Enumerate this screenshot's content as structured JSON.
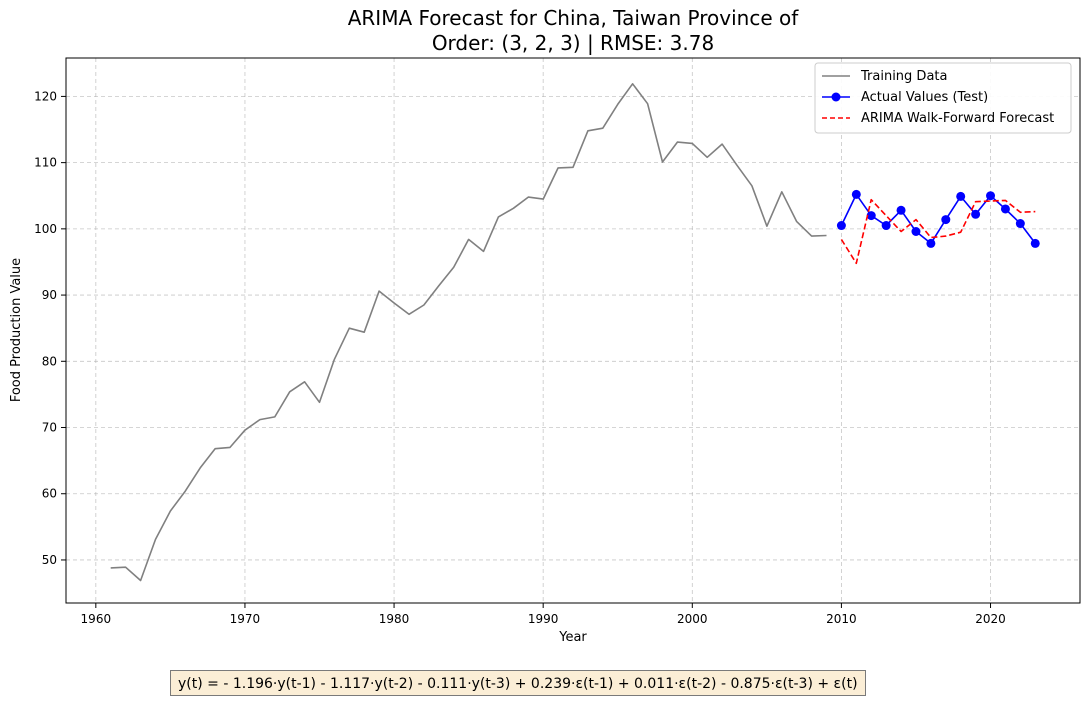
{
  "chart_data": {
    "type": "line",
    "title_line1": "ARIMA Forecast for China, Taiwan Province of",
    "title_line2": "Order: (3, 2, 3) | RMSE: 3.78",
    "xlabel": "Year",
    "ylabel": "Food Production Value",
    "xlim": [
      1958,
      2026
    ],
    "ylim": [
      43.5,
      125.8
    ],
    "xticks": [
      1960,
      1970,
      1980,
      1990,
      2000,
      2010,
      2020
    ],
    "yticks": [
      50,
      60,
      70,
      80,
      90,
      100,
      110,
      120
    ],
    "grid": true,
    "legend_position": "upper right",
    "series": [
      {
        "name": "Training Data",
        "color": "#808080",
        "style": "solid",
        "x": [
          1961,
          1962,
          1963,
          1964,
          1965,
          1966,
          1967,
          1968,
          1969,
          1970,
          1971,
          1972,
          1973,
          1974,
          1975,
          1976,
          1977,
          1978,
          1979,
          1980,
          1981,
          1982,
          1983,
          1984,
          1985,
          1986,
          1987,
          1988,
          1989,
          1990,
          1991,
          1992,
          1993,
          1994,
          1995,
          1996,
          1997,
          1998,
          1999,
          2000,
          2001,
          2002,
          2003,
          2004,
          2005,
          2006,
          2007,
          2008,
          2009
        ],
        "y": [
          48.8,
          48.9,
          46.9,
          53.1,
          57.4,
          60.4,
          63.9,
          66.8,
          67.0,
          69.6,
          71.2,
          71.6,
          75.4,
          76.9,
          73.8,
          80.3,
          85.0,
          84.4,
          90.6,
          88.8,
          87.1,
          88.5,
          91.4,
          94.2,
          98.4,
          96.6,
          101.8,
          103.1,
          104.8,
          104.5,
          109.2,
          109.3,
          114.8,
          115.2,
          118.8,
          121.9,
          118.9,
          110.1,
          113.1,
          112.9,
          110.8,
          112.8,
          109.6,
          106.5,
          100.4,
          105.6,
          101.1,
          98.9,
          99.0
        ]
      },
      {
        "name": "Actual Values (Test)",
        "color": "#0000ff",
        "style": "solid-marker",
        "x": [
          2010,
          2011,
          2012,
          2013,
          2014,
          2015,
          2016,
          2017,
          2018,
          2019,
          2020,
          2021,
          2022,
          2023
        ],
        "y": [
          100.5,
          105.2,
          102.0,
          100.5,
          102.8,
          99.6,
          97.8,
          101.4,
          104.9,
          102.2,
          105.0,
          103.0,
          100.8,
          97.8
        ]
      },
      {
        "name": "ARIMA Walk-Forward Forecast",
        "color": "#ff0000",
        "style": "dashed",
        "x": [
          2010,
          2011,
          2012,
          2013,
          2014,
          2015,
          2016,
          2017,
          2018,
          2019,
          2020,
          2021,
          2022,
          2023
        ],
        "y": [
          98.4,
          94.8,
          104.4,
          102.0,
          99.6,
          101.4,
          98.7,
          98.9,
          99.5,
          104.1,
          104.2,
          104.3,
          102.5,
          102.6
        ]
      }
    ]
  },
  "equation": "y(t) = - 1.196·y(t-1) - 1.117·y(t-2) - 0.111·y(t-3) + 0.239·ε(t-1) + 0.011·ε(t-2) - 0.875·ε(t-3) + ε(t)"
}
